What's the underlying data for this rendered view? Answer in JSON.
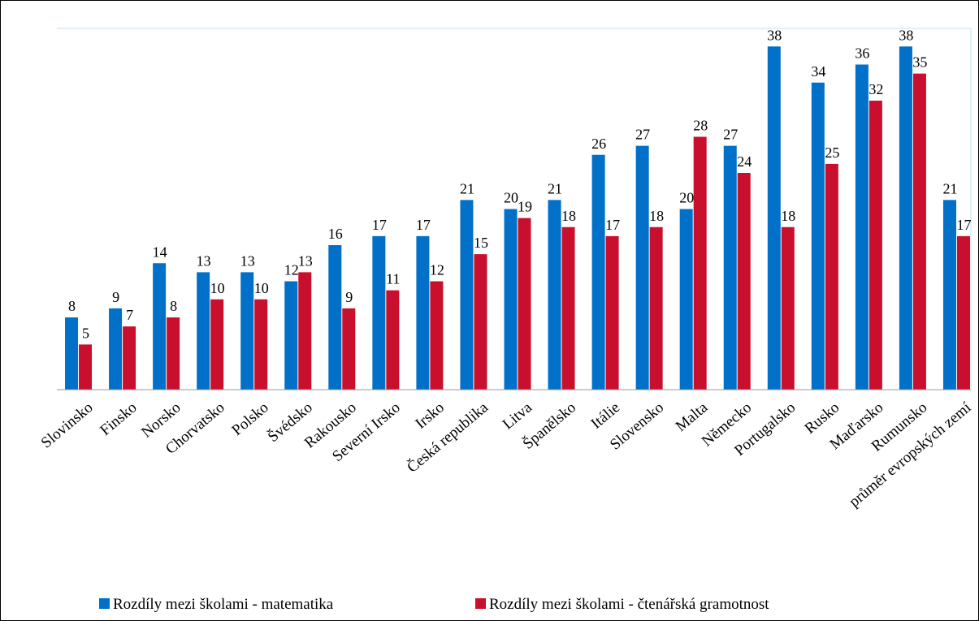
{
  "chart_data": {
    "type": "bar",
    "categories": [
      "Slovinsko",
      "Finsko",
      "Norsko",
      "Chorvatsko",
      "Polsko",
      "Švédsko",
      "Rakousko",
      "Severní Irsko",
      "Irsko",
      "Česká republika",
      "Litva",
      "Španělsko",
      "Itálie",
      "Slovensko",
      "Malta",
      "Německo",
      "Portugalsko",
      "Rusko",
      "Maďarsko",
      "Rumunsko",
      "průměr evropských zemí"
    ],
    "series": [
      {
        "name": "Rozdíly mezi školami - matematika",
        "color": "#0070c8",
        "values": [
          8,
          9,
          14,
          13,
          13,
          12,
          16,
          17,
          17,
          21,
          20,
          21,
          26,
          27,
          20,
          27,
          38,
          34,
          36,
          38,
          21
        ]
      },
      {
        "name": "Rozdíly mezi školami - čtenářská gramotnost",
        "color": "#c8102e",
        "values": [
          5,
          7,
          8,
          10,
          10,
          13,
          9,
          11,
          12,
          15,
          19,
          18,
          17,
          18,
          28,
          24,
          18,
          25,
          32,
          35,
          17
        ]
      }
    ],
    "ylim": [
      0,
      40
    ],
    "legend": "bottom"
  }
}
